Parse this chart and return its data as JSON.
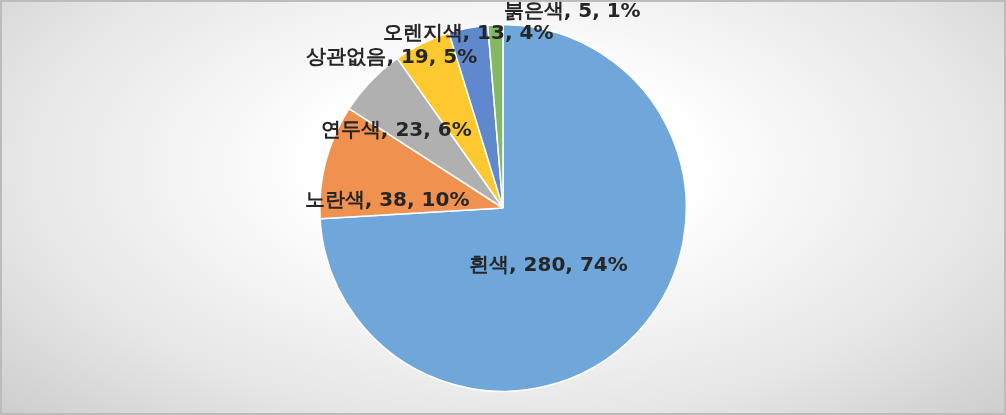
{
  "chart_data": {
    "type": "pie",
    "categories": [
      "흰색",
      "노란색",
      "연두색",
      "상관없음",
      "오렌지색",
      "붉은색"
    ],
    "values": [
      280,
      38,
      23,
      19,
      13,
      5
    ],
    "value_labels": [
      "280, 74%",
      "38, 10%",
      "23, 6%",
      "19, 5%",
      "13, 4%",
      "5, 1%"
    ],
    "colors": [
      "#70a7db",
      "#f0914f",
      "#b0b0b0",
      "#fec92e",
      "#5f88cd",
      "#84b865"
    ]
  }
}
